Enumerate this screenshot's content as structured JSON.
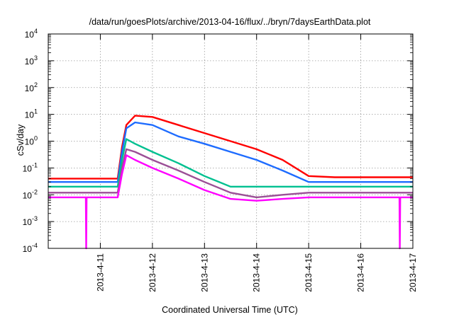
{
  "chart_data": {
    "type": "line",
    "title": "/data/run/goesPlots/archive/2013-04-16/flux/../bryn/7daysEarthData.plot",
    "xlabel": "Coordinated Universal Time (UTC)",
    "ylabel": "cSv/day",
    "y_scale": "log",
    "ylim": [
      0.0001,
      10000
    ],
    "xlim": [
      "2013-04-10T00:00",
      "2013-04-17T00:00"
    ],
    "x_ticks": [
      "2013-4-11",
      "2013-4-12",
      "2013-4-13",
      "2013-4-14",
      "2013-4-15",
      "2013-4-16",
      "2013-4-17"
    ],
    "y_ticks": [
      {
        "value": 0.0001,
        "base": "10",
        "exp": "-4"
      },
      {
        "value": 0.001,
        "base": "10",
        "exp": "-3"
      },
      {
        "value": 0.01,
        "base": "10",
        "exp": "-2"
      },
      {
        "value": 0.1,
        "base": "10",
        "exp": "-1"
      },
      {
        "value": 1,
        "base": "10",
        "exp": "0"
      },
      {
        "value": 10,
        "base": "10",
        "exp": "1"
      },
      {
        "value": 100,
        "base": "10",
        "exp": "2"
      },
      {
        "value": 1000,
        "base": "10",
        "exp": "3"
      },
      {
        "value": 10000,
        "base": "10",
        "exp": "4"
      }
    ],
    "grid": true,
    "legend": "none",
    "series": [
      {
        "color": "#ff0000",
        "points": [
          [
            "2013-04-10T00:00",
            0.04
          ],
          [
            "2013-04-11T00:00",
            0.04
          ],
          [
            "2013-04-11T08:00",
            0.04
          ],
          [
            "2013-04-11T10:00",
            0.6
          ],
          [
            "2013-04-11T12:00",
            4
          ],
          [
            "2013-04-11T16:00",
            9
          ],
          [
            "2013-04-12T00:00",
            8
          ],
          [
            "2013-04-12T12:00",
            4
          ],
          [
            "2013-04-13T00:00",
            2
          ],
          [
            "2013-04-13T12:00",
            1
          ],
          [
            "2013-04-14T00:00",
            0.5
          ],
          [
            "2013-04-14T12:00",
            0.2
          ],
          [
            "2013-04-15T00:00",
            0.05
          ],
          [
            "2013-04-15T12:00",
            0.045
          ],
          [
            "2013-04-16T00:00",
            0.045
          ],
          [
            "2013-04-17T00:00",
            0.045
          ]
        ]
      },
      {
        "color": "#1e6cff",
        "points": [
          [
            "2013-04-10T00:00",
            0.03
          ],
          [
            "2013-04-11T00:00",
            0.03
          ],
          [
            "2013-04-11T08:00",
            0.03
          ],
          [
            "2013-04-11T10:00",
            0.4
          ],
          [
            "2013-04-11T12:00",
            3
          ],
          [
            "2013-04-11T16:00",
            5
          ],
          [
            "2013-04-12T00:00",
            4
          ],
          [
            "2013-04-12T12:00",
            1.5
          ],
          [
            "2013-04-13T00:00",
            0.8
          ],
          [
            "2013-04-13T12:00",
            0.4
          ],
          [
            "2013-04-14T00:00",
            0.2
          ],
          [
            "2013-04-14T12:00",
            0.08
          ],
          [
            "2013-04-15T00:00",
            0.03
          ],
          [
            "2013-04-15T12:00",
            0.03
          ],
          [
            "2013-04-16T00:00",
            0.03
          ],
          [
            "2013-04-17T00:00",
            0.03
          ]
        ]
      },
      {
        "color": "#00c090",
        "points": [
          [
            "2013-04-10T00:00",
            0.02
          ],
          [
            "2013-04-11T00:00",
            0.02
          ],
          [
            "2013-04-11T08:00",
            0.02
          ],
          [
            "2013-04-11T10:00",
            0.2
          ],
          [
            "2013-04-11T12:00",
            1.2
          ],
          [
            "2013-04-11T16:00",
            0.8
          ],
          [
            "2013-04-12T00:00",
            0.4
          ],
          [
            "2013-04-12T12:00",
            0.15
          ],
          [
            "2013-04-13T00:00",
            0.05
          ],
          [
            "2013-04-13T12:00",
            0.02
          ],
          [
            "2013-04-14T00:00",
            0.02
          ],
          [
            "2013-04-14T12:00",
            0.02
          ],
          [
            "2013-04-15T00:00",
            0.02
          ],
          [
            "2013-04-15T12:00",
            0.02
          ],
          [
            "2013-04-16T00:00",
            0.02
          ],
          [
            "2013-04-17T00:00",
            0.02
          ]
        ]
      },
      {
        "color": "#9b4f96",
        "points": [
          [
            "2013-04-10T00:00",
            0.012
          ],
          [
            "2013-04-11T00:00",
            0.012
          ],
          [
            "2013-04-11T08:00",
            0.012
          ],
          [
            "2013-04-11T10:00",
            0.1
          ],
          [
            "2013-04-11T12:00",
            0.5
          ],
          [
            "2013-04-11T16:00",
            0.4
          ],
          [
            "2013-04-12T00:00",
            0.2
          ],
          [
            "2013-04-12T12:00",
            0.08
          ],
          [
            "2013-04-13T00:00",
            0.03
          ],
          [
            "2013-04-13T12:00",
            0.012
          ],
          [
            "2013-04-14T00:00",
            0.008
          ],
          [
            "2013-04-14T12:00",
            0.01
          ],
          [
            "2013-04-15T00:00",
            0.012
          ],
          [
            "2013-04-15T12:00",
            0.012
          ],
          [
            "2013-04-16T00:00",
            0.012
          ],
          [
            "2013-04-17T00:00",
            0.012
          ]
        ]
      },
      {
        "color": "#ff00ff",
        "points": [
          [
            "2013-04-10T00:00",
            0.008
          ],
          [
            "2013-04-10T17:20",
            0.008
          ],
          [
            "2013-04-10T17:30",
            0.0001
          ],
          [
            "2013-04-10T17:40",
            0.008
          ],
          [
            "2013-04-11T00:00",
            0.008
          ],
          [
            "2013-04-11T08:00",
            0.008
          ],
          [
            "2013-04-11T10:00",
            0.06
          ],
          [
            "2013-04-11T12:00",
            0.3
          ],
          [
            "2013-04-11T16:00",
            0.2
          ],
          [
            "2013-04-12T00:00",
            0.1
          ],
          [
            "2013-04-12T12:00",
            0.04
          ],
          [
            "2013-04-13T00:00",
            0.015
          ],
          [
            "2013-04-13T12:00",
            0.007
          ],
          [
            "2013-04-14T00:00",
            0.006
          ],
          [
            "2013-04-14T12:00",
            0.007
          ],
          [
            "2013-04-15T00:00",
            0.008
          ],
          [
            "2013-04-15T12:00",
            0.008
          ],
          [
            "2013-04-16T00:00",
            0.008
          ],
          [
            "2013-04-16T17:50",
            0.008
          ],
          [
            "2013-04-16T18:00",
            0.0001
          ],
          [
            "2013-04-16T18:10",
            0.008
          ],
          [
            "2013-04-17T00:00",
            0.008
          ]
        ]
      }
    ]
  }
}
